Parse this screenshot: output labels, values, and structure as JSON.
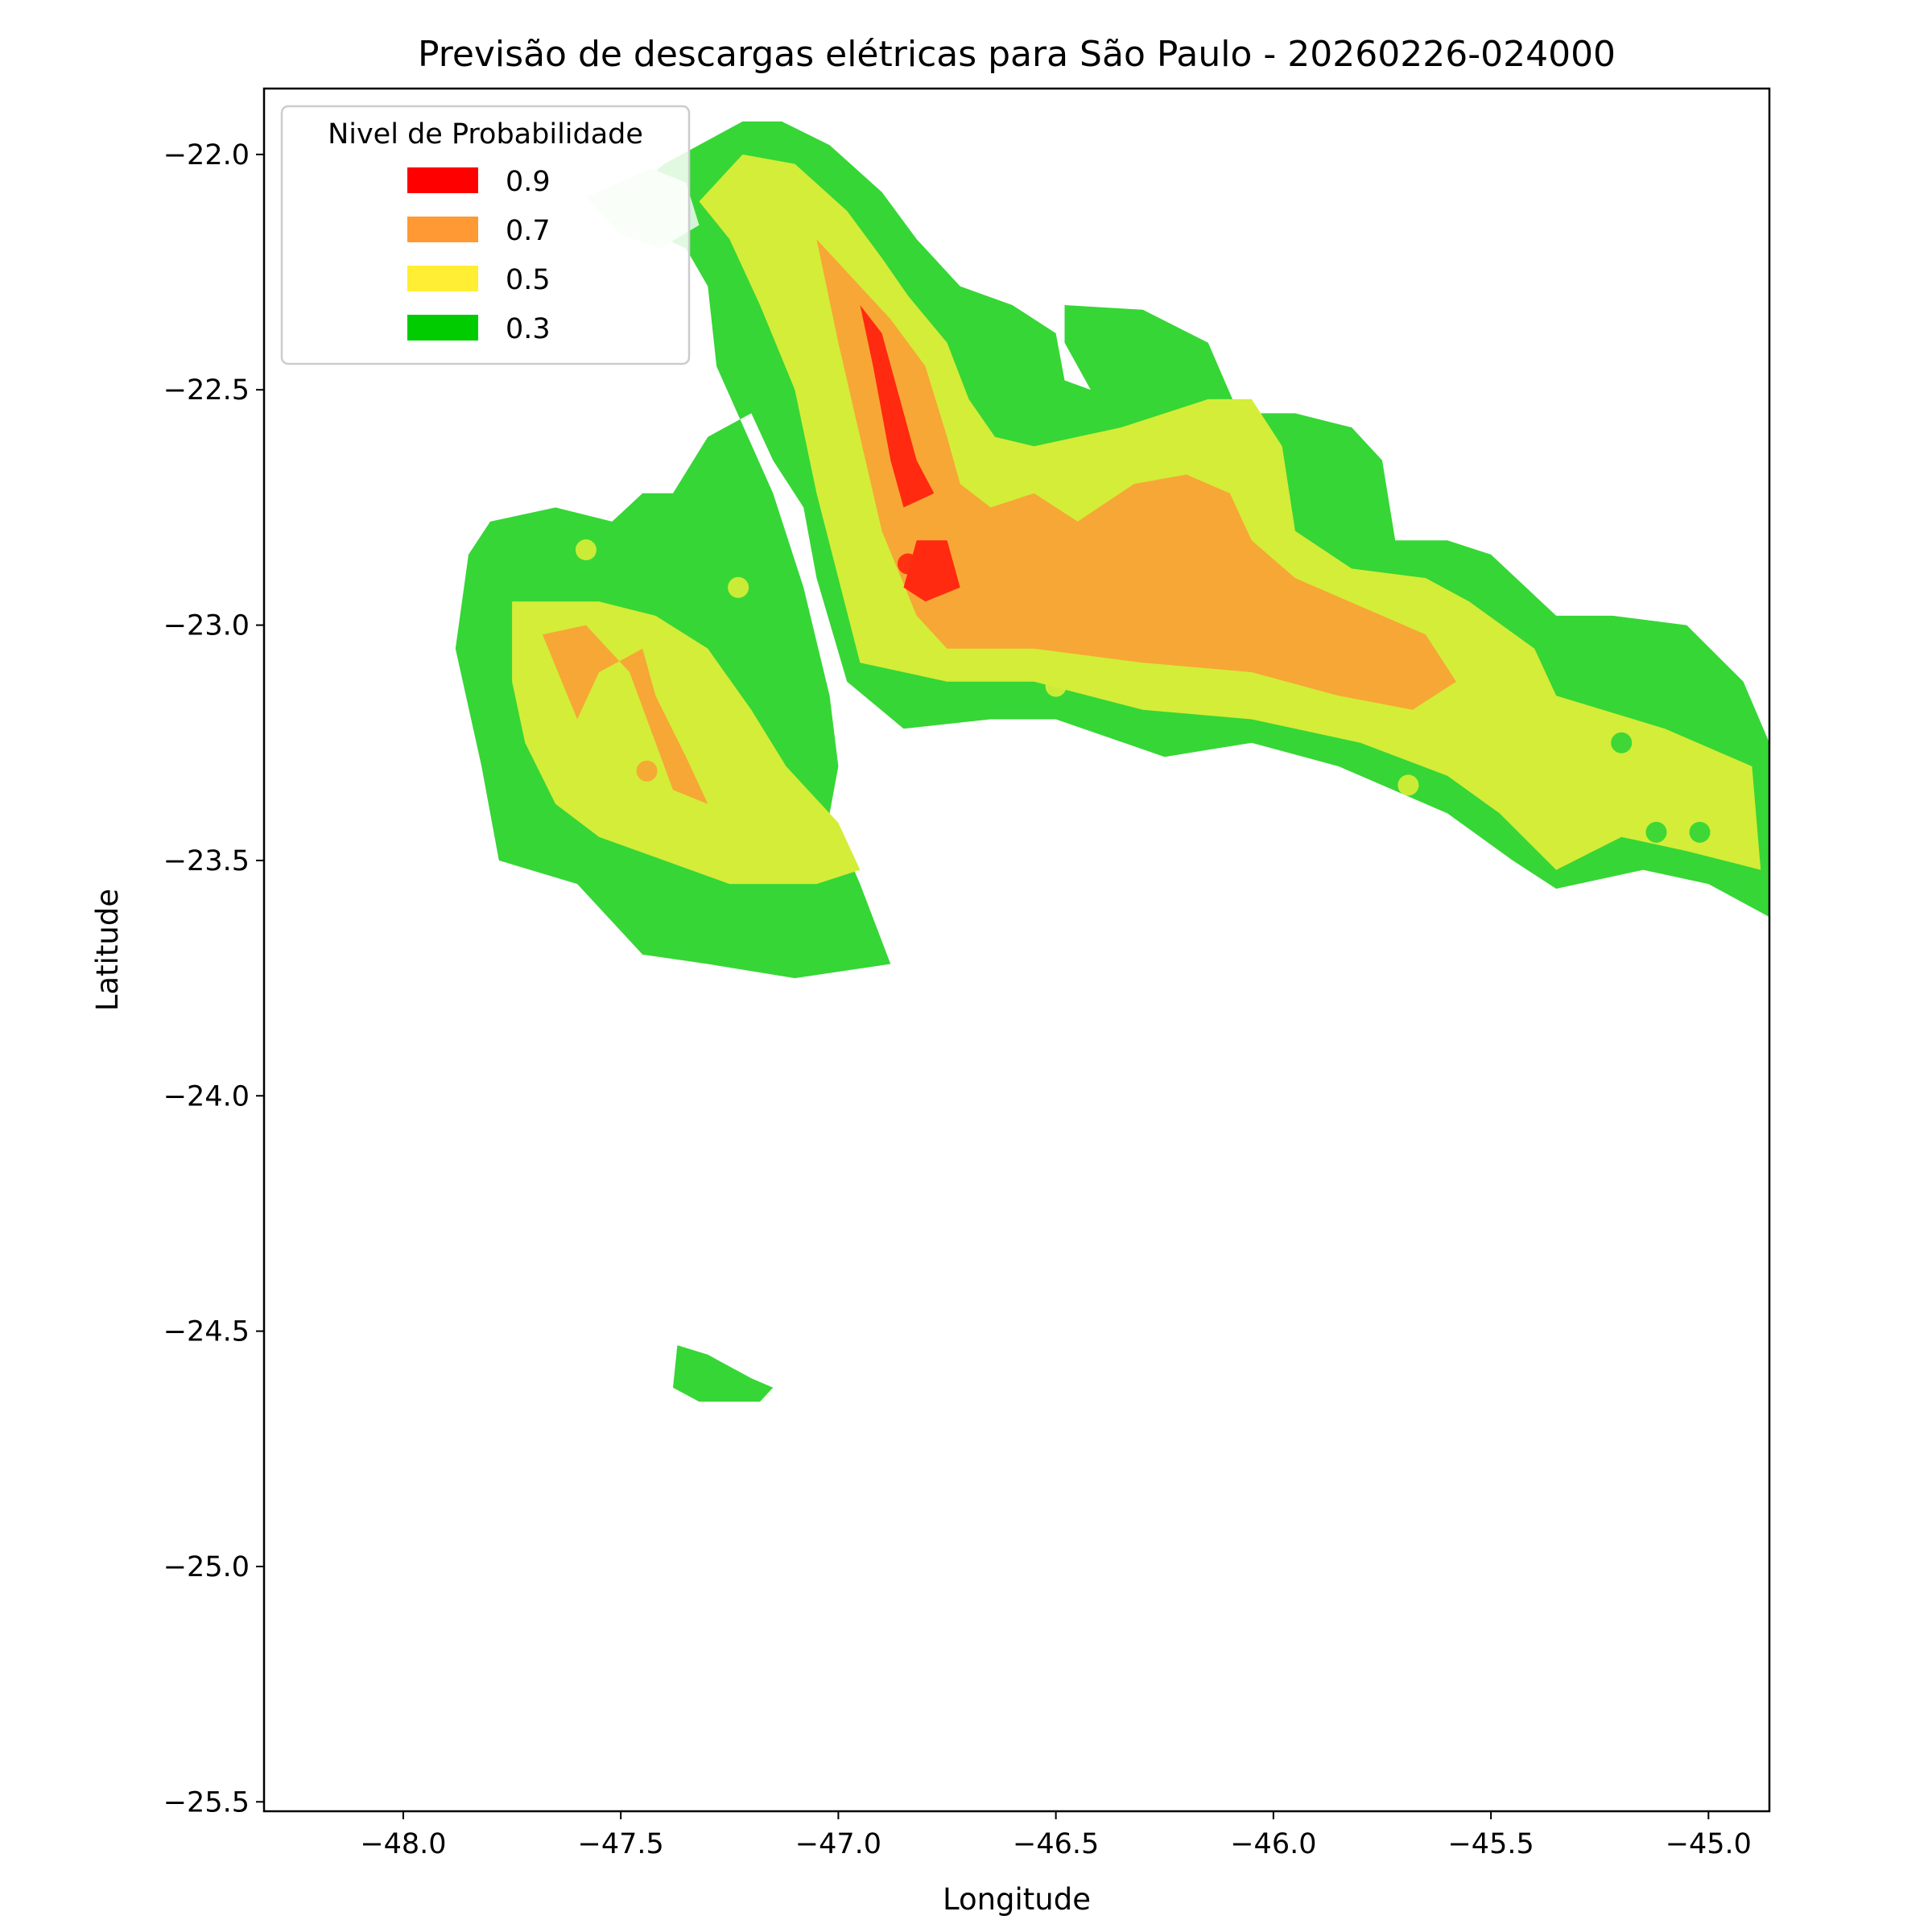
{
  "chart_data": {
    "type": "heatmap",
    "title": "Previsão de descargas elétricas para São Paulo - 20260226-024000",
    "xlabel": "Longitude",
    "ylabel": "Latitude",
    "xlim": [
      -48.32,
      -44.86
    ],
    "ylim": [
      -25.52,
      -21.86
    ],
    "xticks": [
      -48.0,
      -47.5,
      -47.0,
      -46.5,
      -46.0,
      -45.5,
      -45.0
    ],
    "xtick_labels": [
      "−48.0",
      "−47.5",
      "−47.0",
      "−46.5",
      "−46.0",
      "−45.5",
      "−45.0"
    ],
    "yticks": [
      -22.0,
      -22.5,
      -23.0,
      -23.5,
      -24.0,
      -24.5,
      -25.0,
      -25.5
    ],
    "ytick_labels": [
      "−22.0",
      "−22.5",
      "−23.0",
      "−23.5",
      "−24.0",
      "−24.5",
      "−25.0",
      "−25.5"
    ],
    "legend": {
      "title": "Nivel de Probabilidade",
      "placement": "top-left",
      "entries": [
        {
          "label": "0.9",
          "color": "#ff0000"
        },
        {
          "label": "0.7",
          "color": "#ff9933"
        },
        {
          "label": "0.5",
          "color": "#ffee33"
        },
        {
          "label": "0.3",
          "color": "#00cc00"
        }
      ]
    },
    "fill_colors": {
      "0.3": "#36d636",
      "0.5": "#d4ed38",
      "0.7": "#f7a736",
      "0.9": "#ff2a10",
      "faint": "#d4f5d8"
    },
    "regions": [
      {
        "level": "0.3",
        "points": [
          [
            -47.53,
            -22.12
          ],
          [
            -47.4,
            -22.02
          ],
          [
            -47.22,
            -21.93
          ],
          [
            -47.13,
            -21.93
          ],
          [
            -47.02,
            -21.98
          ],
          [
            -46.9,
            -22.08
          ],
          [
            -46.82,
            -22.18
          ],
          [
            -46.72,
            -22.28
          ],
          [
            -46.6,
            -22.32
          ],
          [
            -46.5,
            -22.38
          ],
          [
            -46.48,
            -22.48
          ],
          [
            -46.42,
            -22.5
          ],
          [
            -46.48,
            -22.4
          ],
          [
            -46.48,
            -22.32
          ],
          [
            -46.3,
            -22.33
          ],
          [
            -46.15,
            -22.4
          ],
          [
            -46.08,
            -22.55
          ],
          [
            -45.95,
            -22.55
          ],
          [
            -45.82,
            -22.58
          ],
          [
            -45.75,
            -22.65
          ],
          [
            -45.72,
            -22.82
          ],
          [
            -45.6,
            -22.82
          ],
          [
            -45.5,
            -22.85
          ],
          [
            -45.35,
            -22.98
          ],
          [
            -45.22,
            -22.98
          ],
          [
            -45.05,
            -23.0
          ],
          [
            -44.92,
            -23.12
          ],
          [
            -44.86,
            -23.25
          ],
          [
            -44.86,
            -23.62
          ],
          [
            -45.0,
            -23.55
          ],
          [
            -45.15,
            -23.52
          ],
          [
            -45.35,
            -23.56
          ],
          [
            -45.45,
            -23.5
          ],
          [
            -45.6,
            -23.4
          ],
          [
            -45.85,
            -23.3
          ],
          [
            -46.05,
            -23.25
          ],
          [
            -46.25,
            -23.28
          ],
          [
            -46.5,
            -23.2
          ],
          [
            -46.65,
            -23.2
          ],
          [
            -46.85,
            -23.22
          ],
          [
            -46.98,
            -23.12
          ],
          [
            -47.05,
            -22.9
          ],
          [
            -47.08,
            -22.75
          ],
          [
            -47.15,
            -22.65
          ],
          [
            -47.2,
            -22.55
          ],
          [
            -47.3,
            -22.6
          ],
          [
            -47.38,
            -22.72
          ],
          [
            -47.45,
            -22.72
          ],
          [
            -47.52,
            -22.78
          ],
          [
            -47.65,
            -22.75
          ],
          [
            -47.8,
            -22.78
          ],
          [
            -47.85,
            -22.85
          ],
          [
            -47.88,
            -23.05
          ],
          [
            -47.82,
            -23.3
          ],
          [
            -47.78,
            -23.5
          ],
          [
            -47.6,
            -23.55
          ],
          [
            -47.45,
            -23.7
          ],
          [
            -47.3,
            -23.72
          ],
          [
            -47.1,
            -23.75
          ],
          [
            -46.88,
            -23.72
          ],
          [
            -46.95,
            -23.55
          ],
          [
            -47.02,
            -23.4
          ],
          [
            -47.0,
            -23.3
          ],
          [
            -47.02,
            -23.15
          ],
          [
            -47.08,
            -22.92
          ],
          [
            -47.15,
            -22.72
          ],
          [
            -47.28,
            -22.45
          ],
          [
            -47.3,
            -22.28
          ],
          [
            -47.35,
            -22.2
          ]
        ]
      },
      {
        "level": "0.3",
        "points": [
          [
            -47.37,
            -24.53
          ],
          [
            -47.3,
            -24.55
          ],
          [
            -47.2,
            -24.6
          ],
          [
            -47.15,
            -24.62
          ],
          [
            -47.18,
            -24.65
          ],
          [
            -47.32,
            -24.65
          ],
          [
            -47.38,
            -24.62
          ]
        ]
      },
      {
        "level": "faint",
        "points": [
          [
            -47.58,
            -22.09
          ],
          [
            -47.43,
            -22.03
          ],
          [
            -47.35,
            -22.06
          ],
          [
            -47.32,
            -22.15
          ],
          [
            -47.41,
            -22.2
          ],
          [
            -47.5,
            -22.17
          ]
        ]
      },
      {
        "level": "0.5",
        "points": [
          [
            -47.32,
            -22.1
          ],
          [
            -47.22,
            -22.0
          ],
          [
            -47.1,
            -22.02
          ],
          [
            -46.98,
            -22.12
          ],
          [
            -46.9,
            -22.22
          ],
          [
            -46.84,
            -22.3
          ],
          [
            -46.75,
            -22.4
          ],
          [
            -46.7,
            -22.52
          ],
          [
            -46.64,
            -22.6
          ],
          [
            -46.55,
            -22.62
          ],
          [
            -46.35,
            -22.58
          ],
          [
            -46.15,
            -22.52
          ],
          [
            -46.05,
            -22.52
          ],
          [
            -45.98,
            -22.62
          ],
          [
            -45.95,
            -22.8
          ],
          [
            -45.82,
            -22.88
          ],
          [
            -45.65,
            -22.9
          ],
          [
            -45.55,
            -22.95
          ],
          [
            -45.4,
            -23.05
          ],
          [
            -45.35,
            -23.15
          ],
          [
            -45.1,
            -23.22
          ],
          [
            -44.9,
            -23.3
          ],
          [
            -44.88,
            -23.52
          ],
          [
            -45.05,
            -23.48
          ],
          [
            -45.2,
            -23.45
          ],
          [
            -45.35,
            -23.52
          ],
          [
            -45.48,
            -23.4
          ],
          [
            -45.6,
            -23.32
          ],
          [
            -45.8,
            -23.25
          ],
          [
            -46.05,
            -23.2
          ],
          [
            -46.3,
            -23.18
          ],
          [
            -46.55,
            -23.12
          ],
          [
            -46.75,
            -23.12
          ],
          [
            -46.95,
            -23.08
          ],
          [
            -47.0,
            -22.9
          ],
          [
            -47.05,
            -22.72
          ],
          [
            -47.1,
            -22.5
          ],
          [
            -47.18,
            -22.32
          ],
          [
            -47.25,
            -22.18
          ]
        ]
      },
      {
        "level": "0.5",
        "points": [
          [
            -47.75,
            -22.95
          ],
          [
            -47.55,
            -22.95
          ],
          [
            -47.42,
            -22.98
          ],
          [
            -47.3,
            -23.05
          ],
          [
            -47.2,
            -23.18
          ],
          [
            -47.12,
            -23.3
          ],
          [
            -47.0,
            -23.42
          ],
          [
            -46.95,
            -23.52
          ],
          [
            -47.05,
            -23.55
          ],
          [
            -47.25,
            -23.55
          ],
          [
            -47.4,
            -23.5
          ],
          [
            -47.55,
            -23.45
          ],
          [
            -47.65,
            -23.38
          ],
          [
            -47.72,
            -23.25
          ],
          [
            -47.75,
            -23.12
          ]
        ]
      },
      {
        "level": "0.7",
        "points": [
          [
            -47.05,
            -22.18
          ],
          [
            -46.95,
            -22.28
          ],
          [
            -46.88,
            -22.35
          ],
          [
            -46.8,
            -22.45
          ],
          [
            -46.75,
            -22.6
          ],
          [
            -46.72,
            -22.7
          ],
          [
            -46.65,
            -22.75
          ],
          [
            -46.55,
            -22.72
          ],
          [
            -46.45,
            -22.78
          ],
          [
            -46.32,
            -22.7
          ],
          [
            -46.2,
            -22.68
          ],
          [
            -46.1,
            -22.72
          ],
          [
            -46.05,
            -22.82
          ],
          [
            -45.95,
            -22.9
          ],
          [
            -45.75,
            -22.98
          ],
          [
            -45.65,
            -23.02
          ],
          [
            -45.58,
            -23.12
          ],
          [
            -45.68,
            -23.18
          ],
          [
            -45.85,
            -23.15
          ],
          [
            -46.05,
            -23.1
          ],
          [
            -46.3,
            -23.08
          ],
          [
            -46.55,
            -23.05
          ],
          [
            -46.75,
            -23.05
          ],
          [
            -46.82,
            -22.98
          ],
          [
            -46.9,
            -22.8
          ],
          [
            -46.95,
            -22.6
          ],
          [
            -47.0,
            -22.4
          ]
        ]
      },
      {
        "level": "0.7",
        "points": [
          [
            -47.68,
            -23.02
          ],
          [
            -47.58,
            -23.0
          ],
          [
            -47.48,
            -23.1
          ],
          [
            -47.42,
            -23.25
          ],
          [
            -47.38,
            -23.35
          ],
          [
            -47.3,
            -23.38
          ],
          [
            -47.35,
            -23.28
          ],
          [
            -47.42,
            -23.15
          ],
          [
            -47.45,
            -23.05
          ],
          [
            -47.55,
            -23.1
          ],
          [
            -47.6,
            -23.2
          ]
        ]
      },
      {
        "level": "0.9",
        "points": [
          [
            -46.95,
            -22.32
          ],
          [
            -46.9,
            -22.38
          ],
          [
            -46.82,
            -22.65
          ],
          [
            -46.78,
            -22.72
          ],
          [
            -46.85,
            -22.75
          ],
          [
            -46.88,
            -22.65
          ],
          [
            -46.9,
            -22.55
          ],
          [
            -46.92,
            -22.45
          ]
        ]
      },
      {
        "level": "0.9",
        "points": [
          [
            -46.82,
            -22.82
          ],
          [
            -46.75,
            -22.82
          ],
          [
            -46.72,
            -22.92
          ],
          [
            -46.8,
            -22.95
          ],
          [
            -46.85,
            -22.92
          ]
        ]
      }
    ],
    "points": [
      {
        "x": -47.58,
        "y": -22.84,
        "level": "0.5"
      },
      {
        "x": -47.23,
        "y": -22.92,
        "level": "0.5"
      },
      {
        "x": -46.84,
        "y": -22.87,
        "level": "0.9"
      },
      {
        "x": -46.61,
        "y": -22.84,
        "level": "0.7"
      },
      {
        "x": -46.5,
        "y": -23.13,
        "level": "0.5"
      },
      {
        "x": -46.02,
        "y": -22.96,
        "level": "0.7"
      },
      {
        "x": -45.92,
        "y": -23.07,
        "level": "0.7"
      },
      {
        "x": -45.69,
        "y": -23.34,
        "level": "0.5"
      },
      {
        "x": -45.2,
        "y": -23.25,
        "level": "0.3"
      },
      {
        "x": -45.12,
        "y": -23.44,
        "level": "0.3"
      },
      {
        "x": -45.02,
        "y": -23.44,
        "level": "0.3"
      },
      {
        "x": -47.44,
        "y": -23.31,
        "level": "0.7"
      }
    ]
  }
}
